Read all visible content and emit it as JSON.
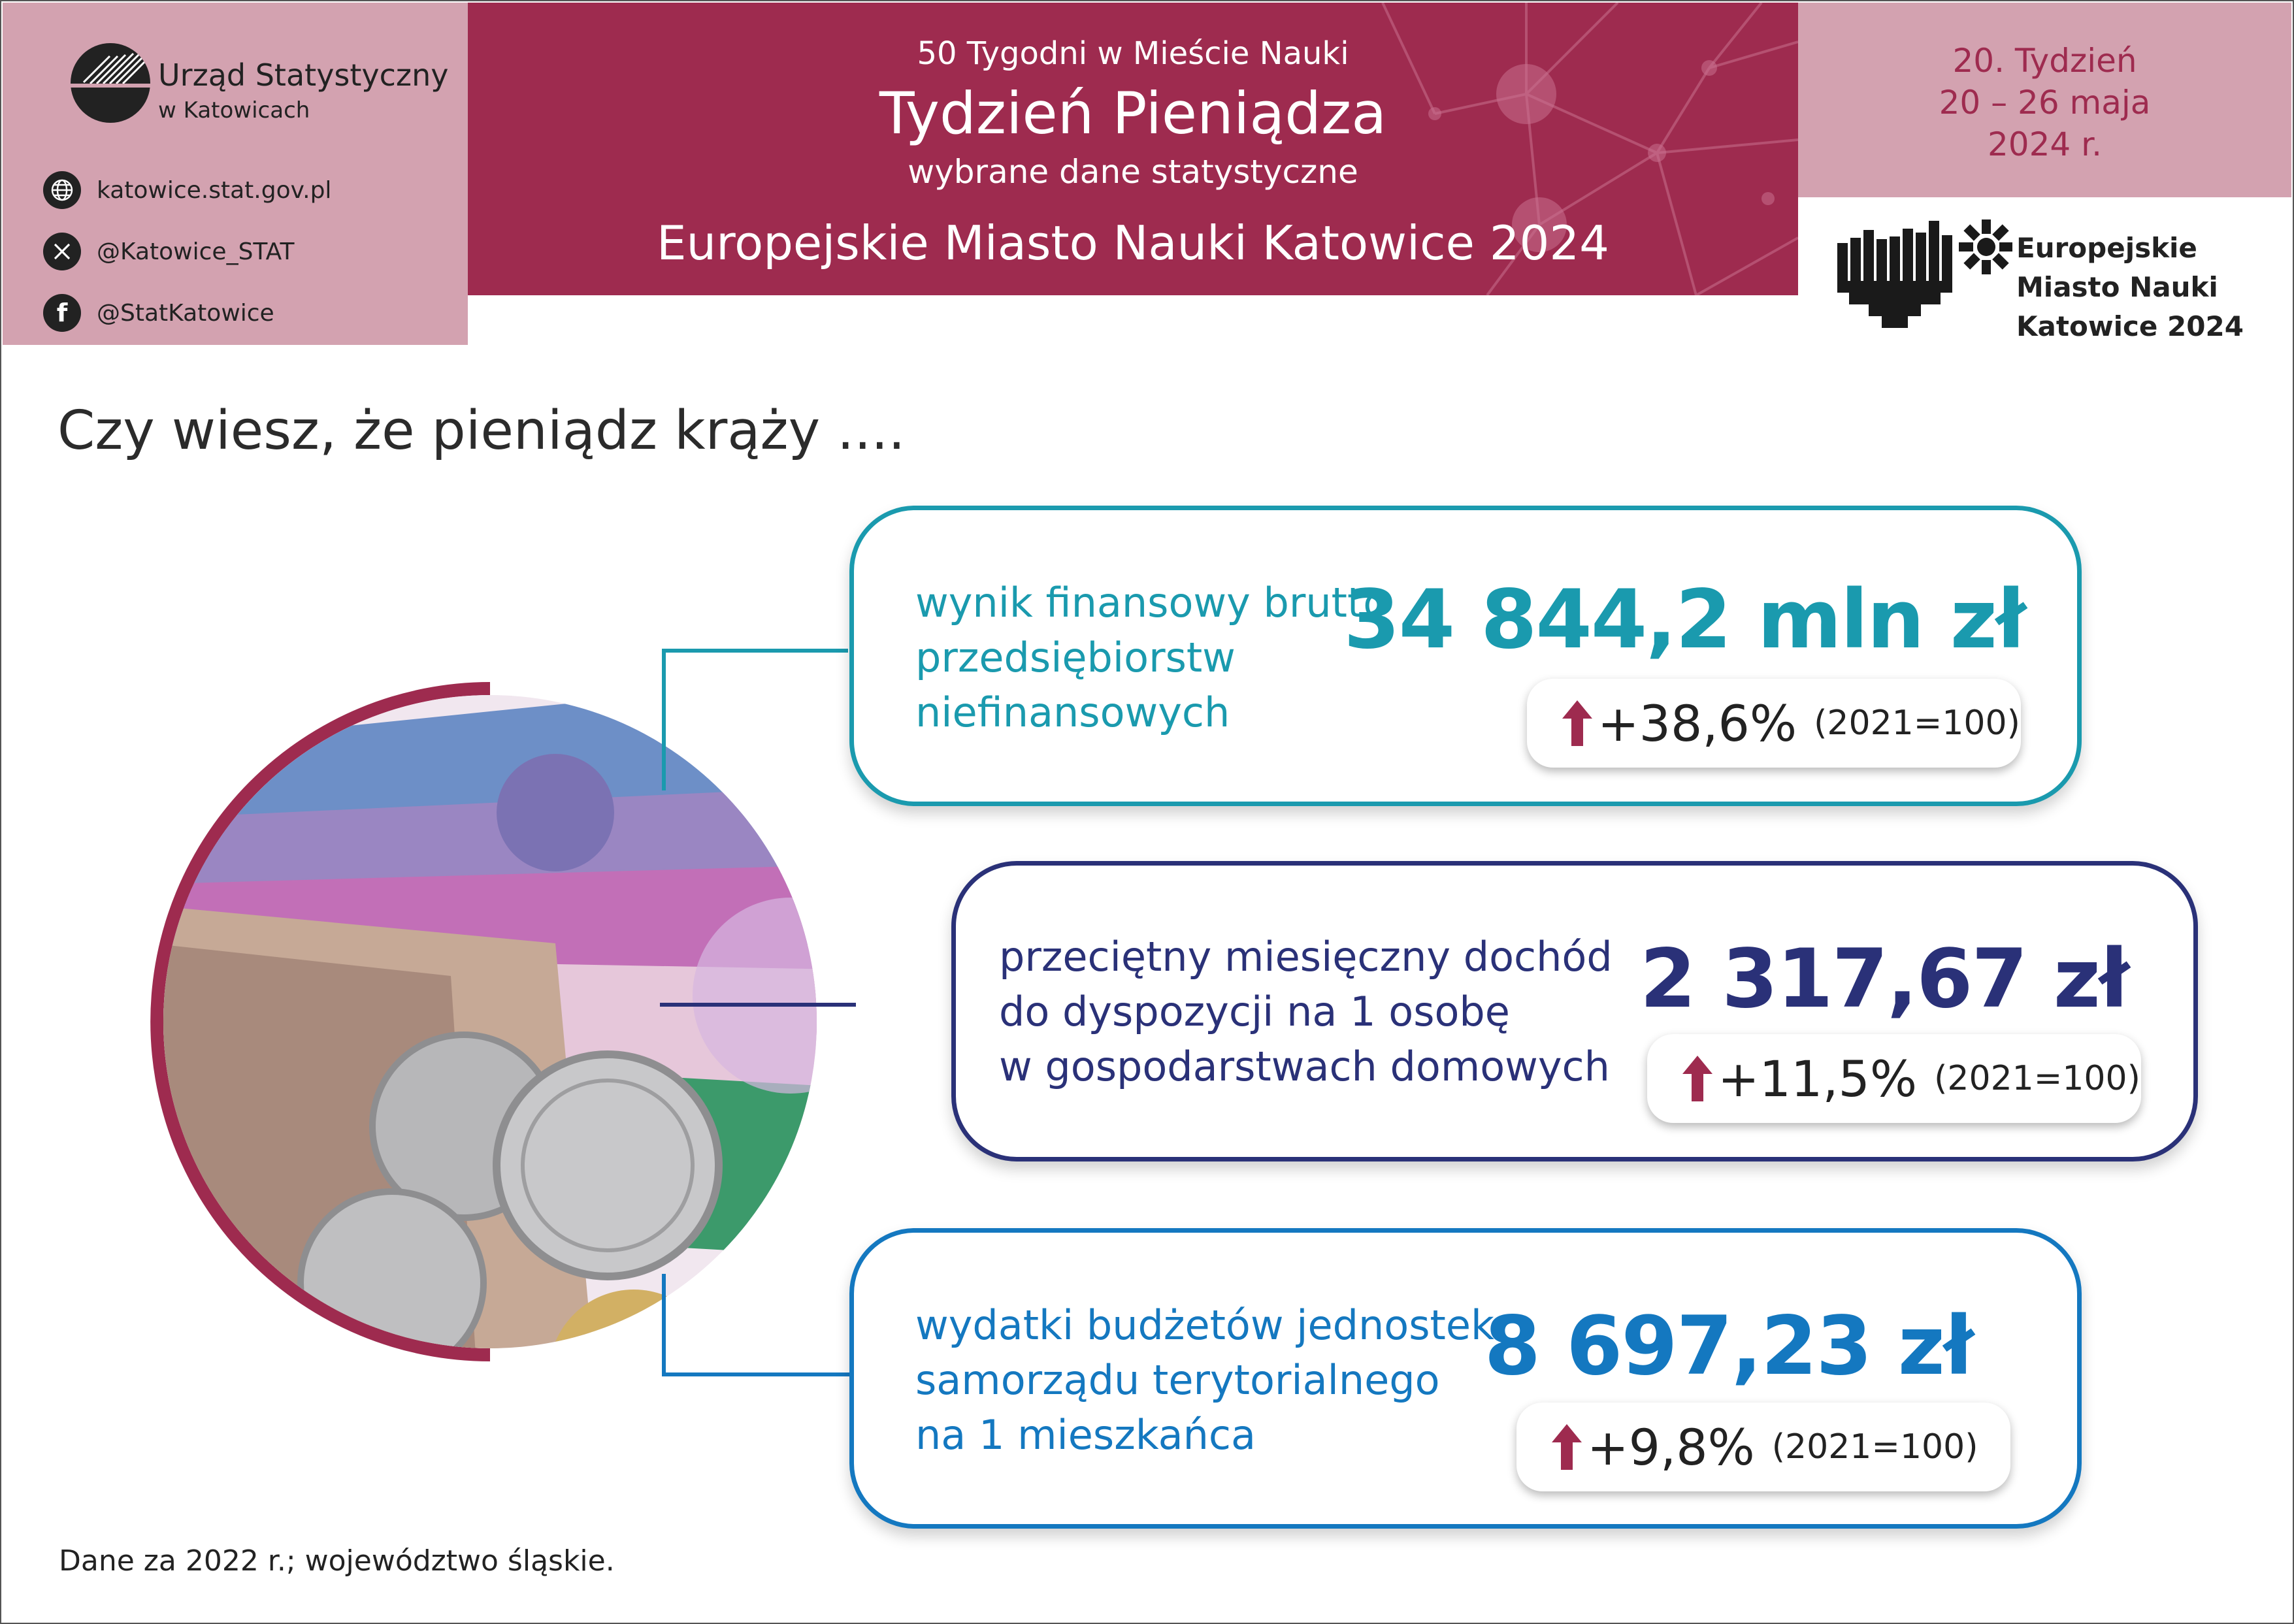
{
  "colors": {
    "maroon": "#9e2b4f",
    "pink": "#d3a2b0",
    "teal": "#1a9aae",
    "navy": "#2a3178",
    "blue": "#1478c0"
  },
  "org": {
    "name": "Urząd Statystyczny",
    "sub": "w Katowicach"
  },
  "contacts": [
    {
      "icon": "globe-icon",
      "text": "katowice.stat.gov.pl"
    },
    {
      "icon": "x-logo-icon",
      "text": "@Katowice_STAT"
    },
    {
      "icon": "facebook-icon",
      "text": "@StatKatowice"
    }
  ],
  "header": {
    "series": "50 Tygodni w Mieście Nauki",
    "title": "Tydzień Pieniądza",
    "subtitle": "wybrane dane statystyczne",
    "event": "Europejskie Miasto Nauki Katowice 2024"
  },
  "week": {
    "line1": "20. Tydzień",
    "line2": "20 – 26 maja",
    "line3": "2024 r."
  },
  "emn_logo": {
    "line1": "Europejskie",
    "line2": "Miasto Nauki",
    "line3": "Katowice 2024"
  },
  "lead": "Czy wiesz, że pieniądz krąży ....",
  "cards": [
    {
      "label": [
        "wynik finansowy brutto",
        "przedsiębiorstw",
        "niefinansowych"
      ],
      "value": "34 844,2 mln zł",
      "change": "+38,6%",
      "base": "(2021=100)"
    },
    {
      "label": [
        "przeciętny miesięczny dochód",
        "do dyspozycji na 1 osobę",
        "w gospodarstwach domowych"
      ],
      "value": "2 317,67 zł",
      "change": "+11,5%",
      "base": "(2021=100)"
    },
    {
      "label": [
        "wydatki budżetów jednostek",
        "samorządu terytorialnego",
        "na 1 mieszkańca"
      ],
      "value": "8 697,23 zł",
      "change": "+9,8%",
      "base": "(2021=100)"
    }
  ],
  "footnote": "Dane za 2022 r.; województwo śląskie."
}
